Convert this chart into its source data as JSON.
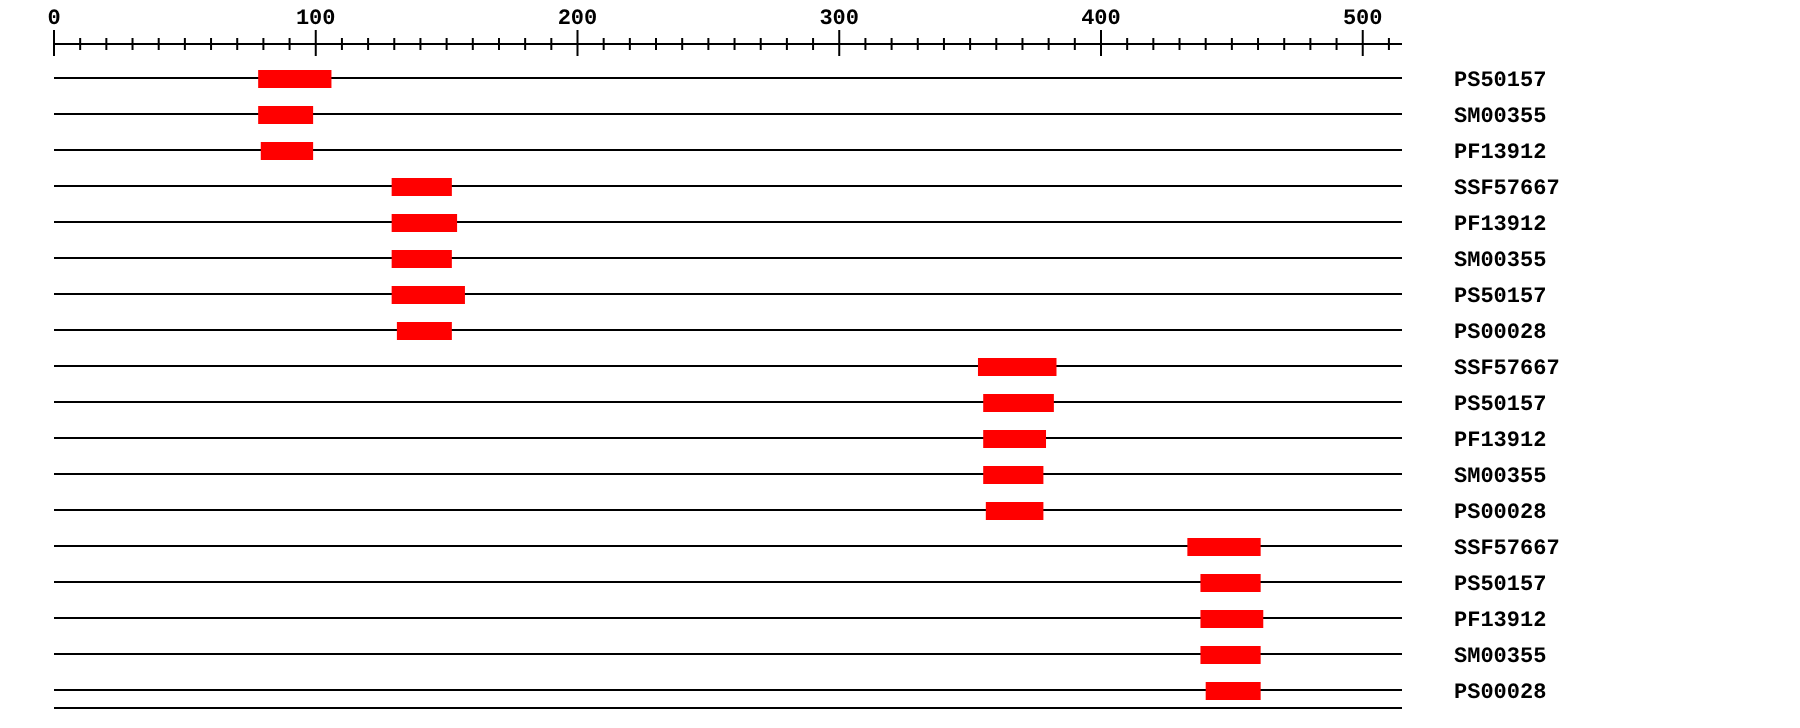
{
  "chart_data": {
    "type": "bar",
    "orientation": "horizontal",
    "categories": [
      "PS50157",
      "SM00355",
      "PF13912",
      "SSF57667",
      "PF13912",
      "SM00355",
      "PS50157",
      "PS00028",
      "SSF57667",
      "PS50157",
      "PF13912",
      "SM00355",
      "PS00028",
      "SSF57667",
      "PS50157",
      "PF13912",
      "SM00355",
      "PS00028"
    ],
    "base": [
      78,
      78,
      79,
      129,
      129,
      129,
      129,
      131,
      353,
      355,
      355,
      355,
      356,
      433,
      438,
      438,
      438,
      440
    ],
    "values": [
      28,
      21,
      20,
      23,
      25,
      23,
      28,
      21,
      30,
      27,
      24,
      23,
      22,
      28,
      23,
      24,
      23,
      21
    ],
    "color": "#ff0000",
    "xlim": [
      0,
      515
    ],
    "xticks": [
      0,
      {
        "value": 10,
        "label": null
      },
      {
        "value": 20,
        "label": null
      },
      {
        "value": 30,
        "label": null
      },
      {
        "value": 40,
        "label": null
      },
      {
        "value": 50,
        "label": null
      },
      {
        "value": 60,
        "label": null
      },
      {
        "value": 70,
        "label": null
      },
      {
        "value": 80,
        "label": null
      },
      {
        "value": 90,
        "label": null
      },
      100,
      {
        "value": 110,
        "label": null
      },
      {
        "value": 120,
        "label": null
      },
      {
        "value": 130,
        "label": null
      },
      {
        "value": 140,
        "label": null
      },
      {
        "value": 150,
        "label": null
      },
      {
        "value": 160,
        "label": null
      },
      {
        "value": 170,
        "label": null
      },
      {
        "value": 180,
        "label": null
      },
      {
        "value": 190,
        "label": null
      },
      200,
      {
        "value": 210,
        "label": null
      },
      {
        "value": 220,
        "label": null
      },
      {
        "value": 230,
        "label": null
      },
      {
        "value": 240,
        "label": null
      },
      {
        "value": 250,
        "label": null
      },
      {
        "value": 260,
        "label": null
      },
      {
        "value": 270,
        "label": null
      },
      {
        "value": 280,
        "label": null
      },
      {
        "value": 290,
        "label": null
      },
      300,
      {
        "value": 310,
        "label": null
      },
      {
        "value": 320,
        "label": null
      },
      {
        "value": 330,
        "label": null
      },
      {
        "value": 340,
        "label": null
      },
      {
        "value": 350,
        "label": null
      },
      {
        "value": 360,
        "label": null
      },
      {
        "value": 370,
        "label": null
      },
      {
        "value": 380,
        "label": null
      },
      {
        "value": 390,
        "label": null
      },
      400,
      {
        "value": 410,
        "label": null
      },
      {
        "value": 420,
        "label": null
      },
      {
        "value": 430,
        "label": null
      },
      {
        "value": 440,
        "label": null
      },
      {
        "value": 450,
        "label": null
      },
      {
        "value": 460,
        "label": null
      },
      {
        "value": 470,
        "label": null
      },
      {
        "value": 480,
        "label": null
      },
      {
        "value": 490,
        "label": null
      },
      500,
      {
        "value": 510,
        "label": null
      }
    ],
    "grid": "y"
  }
}
